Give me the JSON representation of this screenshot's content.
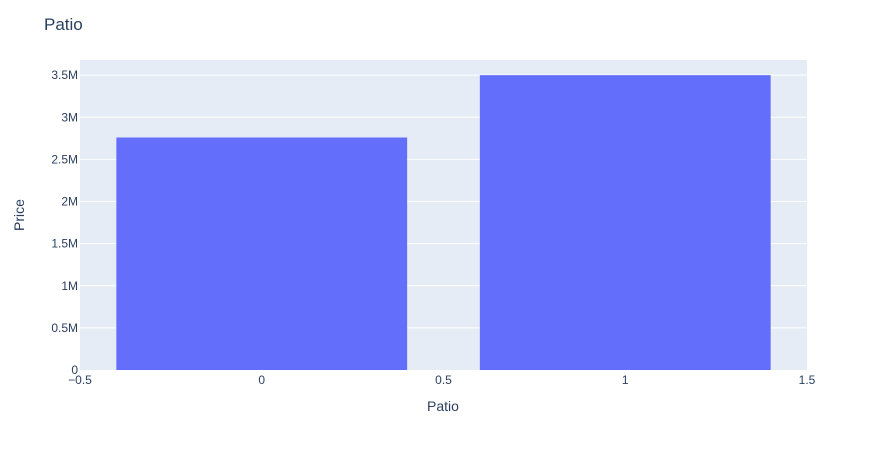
{
  "chart_data": {
    "type": "bar",
    "title": "Patio",
    "xlabel": "Patio",
    "ylabel": "Price",
    "x": [
      0,
      1
    ],
    "values": [
      2760000,
      3500000
    ],
    "bar_width": 0.8,
    "xlim": [
      -0.5,
      1.5
    ],
    "ylim": [
      0,
      3680000
    ],
    "xticks": [
      -0.5,
      0,
      0.5,
      1,
      1.5
    ],
    "xtick_labels": [
      "−0.5",
      "0",
      "0.5",
      "1",
      "1.5"
    ],
    "yticks": [
      0,
      500000,
      1000000,
      1500000,
      2000000,
      2500000,
      3000000,
      3500000
    ],
    "ytick_labels": [
      "0",
      "0.5M",
      "1M",
      "1.5M",
      "2M",
      "2.5M",
      "3M",
      "3.5M"
    ],
    "grid": true,
    "legend": "none",
    "colors": {
      "bar": "#636efa",
      "plot_background": "#e5ecf6",
      "grid": "#ffffff",
      "text": "#2a3f5f"
    }
  }
}
